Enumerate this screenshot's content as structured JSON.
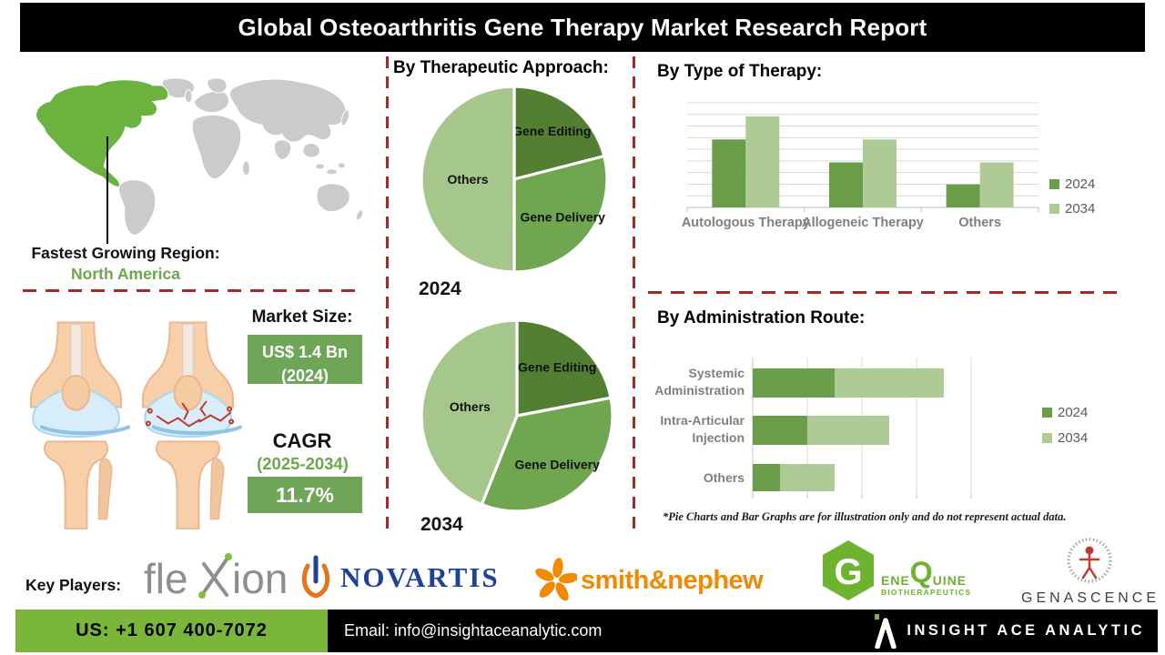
{
  "title": "Global Osteoarthritis Gene Therapy Market Research Report",
  "region": {
    "label": "Fastest Growing Region:",
    "value": "North America"
  },
  "market": {
    "size_label": "Market Size:",
    "size_value": "US$ 1.4 Bn",
    "size_year": "(2024)",
    "cagr_label": "CAGR",
    "cagr_period": "(2025-2034)",
    "cagr_value": "11.7%"
  },
  "disclaimer": "*Pie Charts and Bar Graphs are for illustration only and do not represent actual data.",
  "key_players": {
    "label": "Key Players:",
    "flexion_fle": "fle",
    "flexion_ion": "ion",
    "novartis": "NOVARTIS",
    "smith": "smith&nephew",
    "genequine_g": "G",
    "genequine_ene": "ENE",
    "genequine_q": "Q",
    "genequine_uine": "UINE",
    "genequine_sub": "BIOTHERAPEUTICS",
    "genascence": "GENASCENCE"
  },
  "footer": {
    "phone": "US: +1 607 400-7072",
    "email": "Email: info@insightaceanalytic.com",
    "brand": "INSIGHT ACE ANALYTIC"
  },
  "colors": {
    "map_green": "#6CB23E",
    "footer_green": "#7AB639",
    "dashed_red": "#A32A27",
    "box_green": "#6FA557",
    "text_green": "#6DA64C",
    "axis_label_gray": "#7F7F7F",
    "legend_gray": "#595959"
  },
  "chart_data": [
    {
      "type": "pie",
      "group": "By Therapeutic Approach:",
      "year": "2024",
      "slices": [
        {
          "label": "Gene Editing",
          "value": 21,
          "color": "#527F32"
        },
        {
          "label": "Gene Delivery",
          "value": 29,
          "color": "#6FA64F"
        },
        {
          "label": "Others",
          "value": 50,
          "color": "#A6C78C"
        }
      ]
    },
    {
      "type": "pie",
      "group": "By Therapeutic Approach:",
      "year": "2034",
      "slices": [
        {
          "label": "Gene Editing",
          "value": 22,
          "color": "#527F32"
        },
        {
          "label": "Gene Delivery",
          "value": 34,
          "color": "#6FA64F"
        },
        {
          "label": "Others",
          "value": 44,
          "color": "#A6C78C"
        }
      ]
    },
    {
      "type": "bar",
      "title": "By Type of Therapy:",
      "categories": [
        "Autologous Therapy",
        "Allogeneic Therapy",
        "Others"
      ],
      "series": [
        {
          "name": "2024",
          "color": "#699D49",
          "values": [
            65,
            43,
            22
          ]
        },
        {
          "name": "2034",
          "color": "#AECB96",
          "values": [
            87,
            65,
            43
          ]
        }
      ],
      "ylim": [
        0,
        100
      ],
      "grid": true,
      "legend_position": "right"
    },
    {
      "type": "stacked-bar-horizontal",
      "title": "By Administration Route:",
      "categories": [
        "Systemic Administration",
        "Intra-Articular Injection",
        "Others"
      ],
      "series": [
        {
          "name": "2024",
          "color": "#699D49",
          "values": [
            37.5,
            25,
            12.5
          ]
        },
        {
          "name": "2034",
          "color": "#AECB96",
          "values": [
            50,
            37.5,
            25
          ]
        }
      ],
      "xlim": [
        0,
        100
      ],
      "grid": true,
      "legend_position": "right"
    }
  ]
}
